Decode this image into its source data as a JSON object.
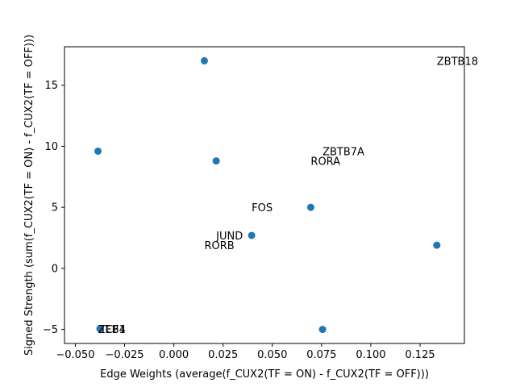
{
  "chart_data": {
    "type": "scatter",
    "xlabel": "Edge Weights (average(f_CUX2(TF = ON) - f_CUX2(TF = OFF)))",
    "ylabel": "Signed Strength (sum(f_CUX2(TF = ON) - f_CUX2(TF = OFF)))",
    "xlim": [
      -0.0555,
      0.1475
    ],
    "ylim": [
      -6.15,
      18.15
    ],
    "xticks": [
      -0.05,
      -0.025,
      0.0,
      0.025,
      0.05,
      0.075,
      0.1,
      0.125
    ],
    "xtick_labels": [
      "−0.050",
      "−0.025",
      "0.000",
      "0.025",
      "0.050",
      "0.075",
      "0.100",
      "0.125"
    ],
    "yticks": [
      -5,
      0,
      5,
      10,
      15
    ],
    "ytick_labels": [
      "−5",
      "0",
      "5",
      "10",
      "15"
    ],
    "grid": false,
    "marker_color": "#1f77b4",
    "points": [
      {
        "x": 0.0155,
        "y": 17.0
      },
      {
        "x": -0.0385,
        "y": 9.6
      },
      {
        "x": 0.0215,
        "y": 8.8
      },
      {
        "x": 0.0695,
        "y": 5.0
      },
      {
        "x": 0.0395,
        "y": 2.7
      },
      {
        "x": 0.1335,
        "y": 1.9
      },
      {
        "x": -0.0375,
        "y": -4.95
      },
      {
        "x": 0.0755,
        "y": -5.0
      }
    ],
    "annotations": [
      {
        "text": "ZBTB18",
        "x": 0.1335,
        "y": 17.0
      },
      {
        "text": "ZBTB7A",
        "x": 0.0755,
        "y": 9.6
      },
      {
        "text": "RORA",
        "x": 0.0695,
        "y": 8.8
      },
      {
        "text": "FOS",
        "x": 0.0395,
        "y": 5.0
      },
      {
        "text": "JUND",
        "x": 0.0215,
        "y": 2.7
      },
      {
        "text": "RORB",
        "x": 0.0155,
        "y": 1.9
      },
      {
        "text": "ZEB1",
        "x": -0.0385,
        "y": -4.95
      },
      {
        "text": "TCF4",
        "x": -0.0375,
        "y": -4.95
      }
    ]
  }
}
